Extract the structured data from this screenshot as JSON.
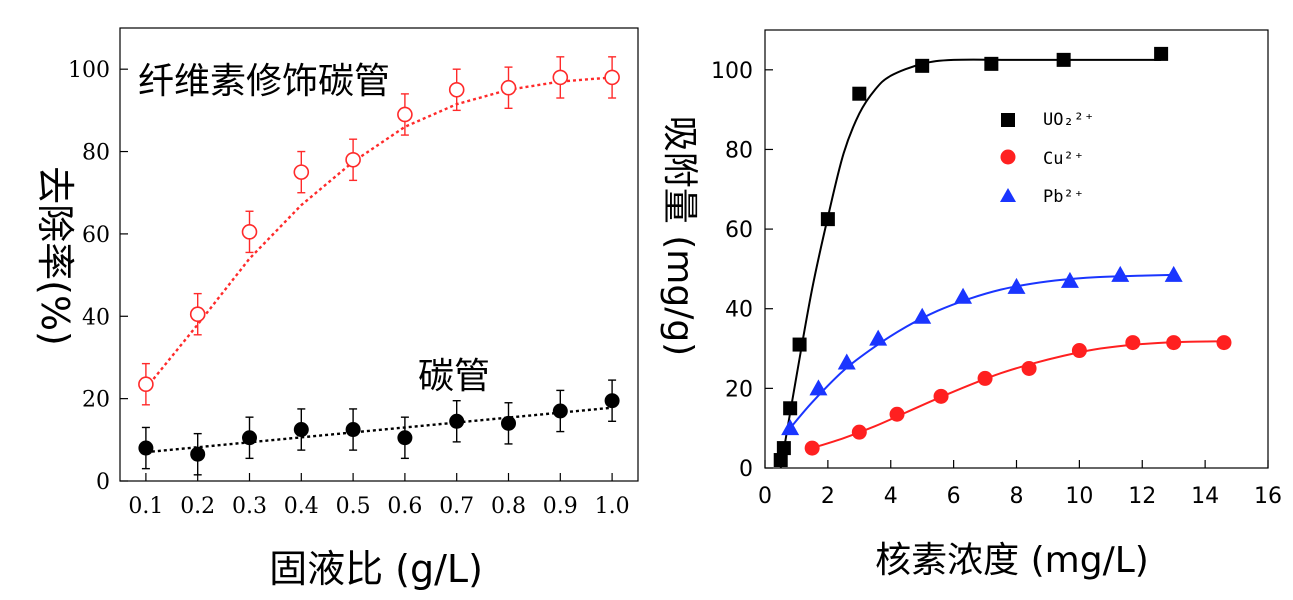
{
  "chart_data": [
    {
      "type": "scatter",
      "xlabel": "固液比 (g/L)",
      "ylabel": "去除率(%)",
      "xlim": [
        0.05,
        1.05
      ],
      "ylim": [
        0,
        110
      ],
      "xticks": [
        "0.1",
        "0.2",
        "0.3",
        "0.4",
        "0.5",
        "0.6",
        "0.7",
        "0.8",
        "0.9",
        "1.0"
      ],
      "yticks": [
        "0",
        "20",
        "40",
        "60",
        "80",
        "100"
      ],
      "series": [
        {
          "name": "纤维素修饰碳管",
          "color": "#ff2a2a",
          "marker": "open-circle",
          "x": [
            0.1,
            0.2,
            0.3,
            0.4,
            0.5,
            0.6,
            0.7,
            0.8,
            0.9,
            1.0
          ],
          "y": [
            23.5,
            40.5,
            60.5,
            75,
            78,
            89,
            95,
            95.5,
            98,
            98
          ],
          "err": [
            5,
            5,
            5,
            5,
            5,
            5,
            5,
            5,
            5,
            5
          ],
          "fit": [
            22.5,
            38,
            54,
            67,
            77.5,
            86,
            91.5,
            95,
            97,
            98
          ]
        },
        {
          "name": "碳管",
          "color": "#000000",
          "marker": "filled-circle",
          "x": [
            0.1,
            0.2,
            0.3,
            0.4,
            0.5,
            0.6,
            0.7,
            0.8,
            0.9,
            1.0
          ],
          "y": [
            8,
            6.5,
            10.5,
            12.5,
            12.5,
            10.5,
            14.5,
            14,
            17,
            19.5
          ],
          "err": [
            5,
            5,
            5,
            5,
            5,
            5,
            5,
            5,
            5,
            5
          ],
          "fit": [
            7,
            8.2,
            9.4,
            10.6,
            11.8,
            13,
            14.2,
            15.4,
            16.6,
            17.8
          ]
        }
      ]
    },
    {
      "type": "scatter",
      "xlabel": "核素浓度 (mg/L)",
      "ylabel": "吸附量 (mg/g)",
      "xlim": [
        0,
        16
      ],
      "ylim": [
        0,
        110
      ],
      "xticks": [
        "0",
        "2",
        "4",
        "6",
        "8",
        "10",
        "12",
        "14",
        "16"
      ],
      "yticks": [
        "0",
        "20",
        "40",
        "60",
        "80",
        "100"
      ],
      "legend_position": "top-right",
      "series": [
        {
          "name": "UO₂²⁺",
          "color": "#000000",
          "marker": "filled-square",
          "x": [
            0.5,
            0.6,
            0.8,
            1.1,
            2.0,
            3.0,
            5.0,
            7.2,
            9.5,
            12.6
          ],
          "y": [
            2,
            5,
            15,
            31,
            62.5,
            94,
            101,
            101.5,
            102.5,
            104
          ],
          "fit": [
            [
              0.5,
              0
            ],
            [
              1.0,
              23
            ],
            [
              1.5,
              45
            ],
            [
              2.0,
              63
            ],
            [
              2.5,
              79
            ],
            [
              3.0,
              89
            ],
            [
              3.5,
              95
            ],
            [
              4.0,
              98.5
            ],
            [
              5.0,
              101.5
            ],
            [
              6.0,
              102.5
            ],
            [
              8.0,
              102.5
            ],
            [
              10.0,
              102.5
            ],
            [
              12.6,
              102.5
            ]
          ]
        },
        {
          "name": "Cu²⁺",
          "color": "#ff2020",
          "marker": "filled-circle",
          "x": [
            1.5,
            3.0,
            4.2,
            5.6,
            7.0,
            8.4,
            10.0,
            11.7,
            13.0,
            14.6
          ],
          "y": [
            5,
            9,
            13.5,
            18,
            22.5,
            25,
            29.5,
            31.5,
            31.5,
            31.5
          ],
          "fit": [
            [
              1.5,
              5
            ],
            [
              2.5,
              7.5
            ],
            [
              3.5,
              10.5
            ],
            [
              4.5,
              14
            ],
            [
              5.5,
              17.5
            ],
            [
              6.5,
              20.8
            ],
            [
              7.5,
              23.8
            ],
            [
              8.5,
              26.2
            ],
            [
              9.5,
              28.2
            ],
            [
              10.5,
              29.8
            ],
            [
              11.5,
              30.8
            ],
            [
              12.5,
              31.4
            ],
            [
              13.5,
              31.7
            ],
            [
              14.5,
              31.8
            ]
          ]
        },
        {
          "name": "Pb²⁺",
          "color": "#1a35ff",
          "marker": "filled-triangle",
          "x": [
            0.8,
            1.7,
            2.6,
            3.6,
            5.0,
            6.3,
            8.0,
            9.7,
            11.3,
            13.0
          ],
          "y": [
            10,
            20,
            26.5,
            32.5,
            38,
            43,
            45.5,
            47,
            48.5,
            48.5
          ],
          "fit": [
            [
              0.8,
              10
            ],
            [
              1.5,
              16.5
            ],
            [
              2.5,
              24.5
            ],
            [
              3.5,
              30.5
            ],
            [
              4.5,
              35.5
            ],
            [
              5.5,
              39.5
            ],
            [
              6.5,
              42.5
            ],
            [
              7.5,
              44.8
            ],
            [
              8.5,
              46.3
            ],
            [
              9.5,
              47.3
            ],
            [
              10.5,
              47.9
            ],
            [
              11.5,
              48.2
            ],
            [
              12.5,
              48.4
            ],
            [
              13.0,
              48.5
            ]
          ]
        }
      ]
    }
  ]
}
